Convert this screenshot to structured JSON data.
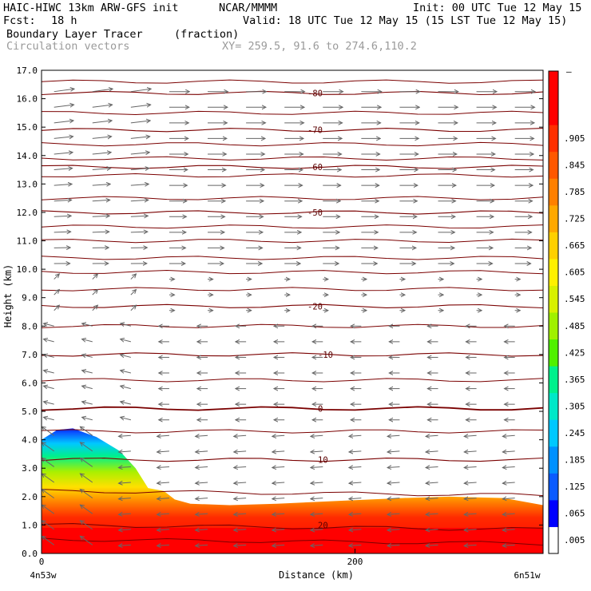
{
  "header": {
    "model": "HAIC-HIWC 13km ARW-GFS init",
    "org": "NCAR/MMMM",
    "init": "Init: 00 UTC Tue 12 May 15",
    "fcst_label": "Fcst:",
    "fcst_value": "18 h",
    "valid": "Valid: 18 UTC Tue 12 May 15 (15 LST Tue 12 May 15)",
    "field": "Boundary Layer Tracer",
    "field_units": "(fraction)",
    "vectors": "Circulation vectors",
    "xy": "XY= 259.5, 91.6 to 274.6,110.2"
  },
  "colors": {
    "contour": "#7a0000",
    "vector": "#666666",
    "colorbar": [
      "#ffffff",
      "#0000ff",
      "#0a5bff",
      "#0091ff",
      "#00c8ff",
      "#00e8c8",
      "#00f08c",
      "#50f000",
      "#a0f000",
      "#d8f000",
      "#fff000",
      "#ffd000",
      "#ffa800",
      "#ff8000",
      "#ff5800",
      "#ff3000",
      "#ff0000",
      "#ff0000"
    ]
  },
  "chart_data": {
    "type": "heatmap",
    "title": "Boundary Layer Tracer",
    "units": "(fraction)",
    "xlabel": "Distance (km)",
    "ylabel": "Height (km)",
    "xlim": [
      0,
      320
    ],
    "ylim": [
      0,
      17
    ],
    "x_ticks": [
      {
        "value": 0,
        "label": "0"
      },
      {
        "value": 200,
        "label": "200"
      }
    ],
    "x_endpoints": {
      "left": "4n53w",
      "right": "6n51w"
    },
    "y_ticks": [
      0,
      1,
      2,
      3,
      4,
      5,
      6,
      7,
      8,
      9,
      10,
      11,
      12,
      13,
      14,
      15,
      16,
      17
    ],
    "y_tick_labels": [
      "0.0",
      "1.0",
      "2.0",
      "3.0",
      "4.0",
      "5.0",
      "6.0",
      "7.0",
      "8.0",
      "9.0",
      "10.0",
      "11.0",
      "12.0",
      "13.0",
      "14.0",
      "15.0",
      "16.0",
      "17.0"
    ],
    "colorbar_labels": [
      ".005",
      ".065",
      ".125",
      ".185",
      ".245",
      ".305",
      ".365",
      ".425",
      ".485",
      ".545",
      ".605",
      ".665",
      ".725",
      ".785",
      ".845",
      ".905"
    ],
    "colorbar_top_label": "–",
    "tracer_top_km": [
      {
        "x": 0,
        "top": 4.0
      },
      {
        "x": 10,
        "top": 4.35
      },
      {
        "x": 20,
        "top": 4.4
      },
      {
        "x": 35,
        "top": 4.1
      },
      {
        "x": 50,
        "top": 3.6
      },
      {
        "x": 60,
        "top": 3.0
      },
      {
        "x": 68,
        "top": 2.3
      },
      {
        "x": 78,
        "top": 2.2
      },
      {
        "x": 85,
        "top": 1.9
      },
      {
        "x": 95,
        "top": 1.75
      },
      {
        "x": 120,
        "top": 1.7
      },
      {
        "x": 150,
        "top": 1.75
      },
      {
        "x": 190,
        "top": 1.85
      },
      {
        "x": 230,
        "top": 1.95
      },
      {
        "x": 260,
        "top": 2.0
      },
      {
        "x": 295,
        "top": 1.95
      },
      {
        "x": 320,
        "top": 1.7
      }
    ],
    "isotherms": [
      {
        "label": "-80",
        "height": 16.2
      },
      {
        "label": "-70",
        "height": 14.9
      },
      {
        "label": "-60",
        "height": 13.6
      },
      {
        "label": "-50",
        "height": 12.0
      },
      {
        "label": "-20",
        "height": 8.7
      },
      {
        "label": "-10",
        "height": 7.0
      },
      {
        "label": "0",
        "height": 5.1
      },
      {
        "label": "10",
        "height": 3.3
      },
      {
        "label": "20",
        "height": 1.0
      }
    ],
    "unlabeled_isotherms": [
      16.6,
      15.5,
      14.4,
      13.9,
      13.3,
      12.5,
      11.5,
      11.0,
      10.4,
      9.9,
      9.3,
      8.0,
      6.1,
      4.3,
      2.2,
      0.5
    ]
  }
}
